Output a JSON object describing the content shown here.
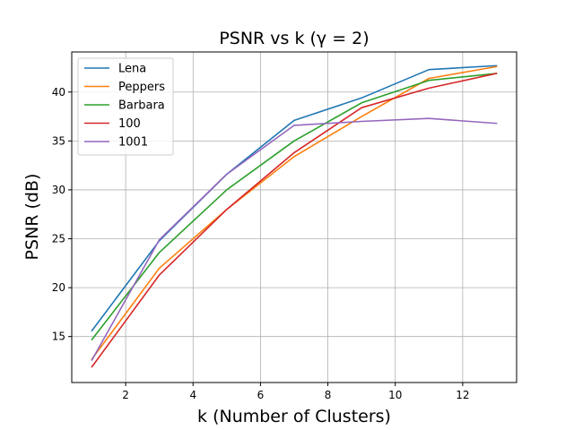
{
  "chart_data": {
    "type": "line",
    "title": "PSNR vs k (γ = 2)",
    "xlabel": "k (Number of Clusters)",
    "ylabel": "PSNR (dB)",
    "xlim": [
      0.4,
      13.6
    ],
    "ylim": [
      10.3,
      44.1
    ],
    "xticks": [
      2,
      4,
      6,
      8,
      10,
      12
    ],
    "yticks": [
      15,
      20,
      25,
      30,
      35,
      40
    ],
    "grid": true,
    "legend_position": "top-left",
    "x": [
      1,
      3,
      5,
      7,
      9,
      11,
      13
    ],
    "series": [
      {
        "name": "Lena",
        "color": "#1f77b4",
        "values": [
          15.6,
          24.8,
          31.6,
          37.1,
          39.4,
          42.3,
          42.7
        ]
      },
      {
        "name": "Peppers",
        "color": "#ff7f0e",
        "values": [
          12.7,
          22.0,
          28.0,
          33.4,
          37.5,
          41.4,
          42.6
        ]
      },
      {
        "name": "Barbara",
        "color": "#2ca02c",
        "values": [
          14.7,
          23.6,
          30.0,
          35.0,
          38.9,
          41.2,
          41.9
        ]
      },
      {
        "name": "100",
        "color": "#d62728",
        "values": [
          11.9,
          21.3,
          28.0,
          33.8,
          38.4,
          40.4,
          41.9
        ]
      },
      {
        "name": "1001",
        "color": "#9467bd",
        "values": [
          12.6,
          24.9,
          31.6,
          36.6,
          37.0,
          37.3,
          36.8
        ]
      }
    ]
  }
}
